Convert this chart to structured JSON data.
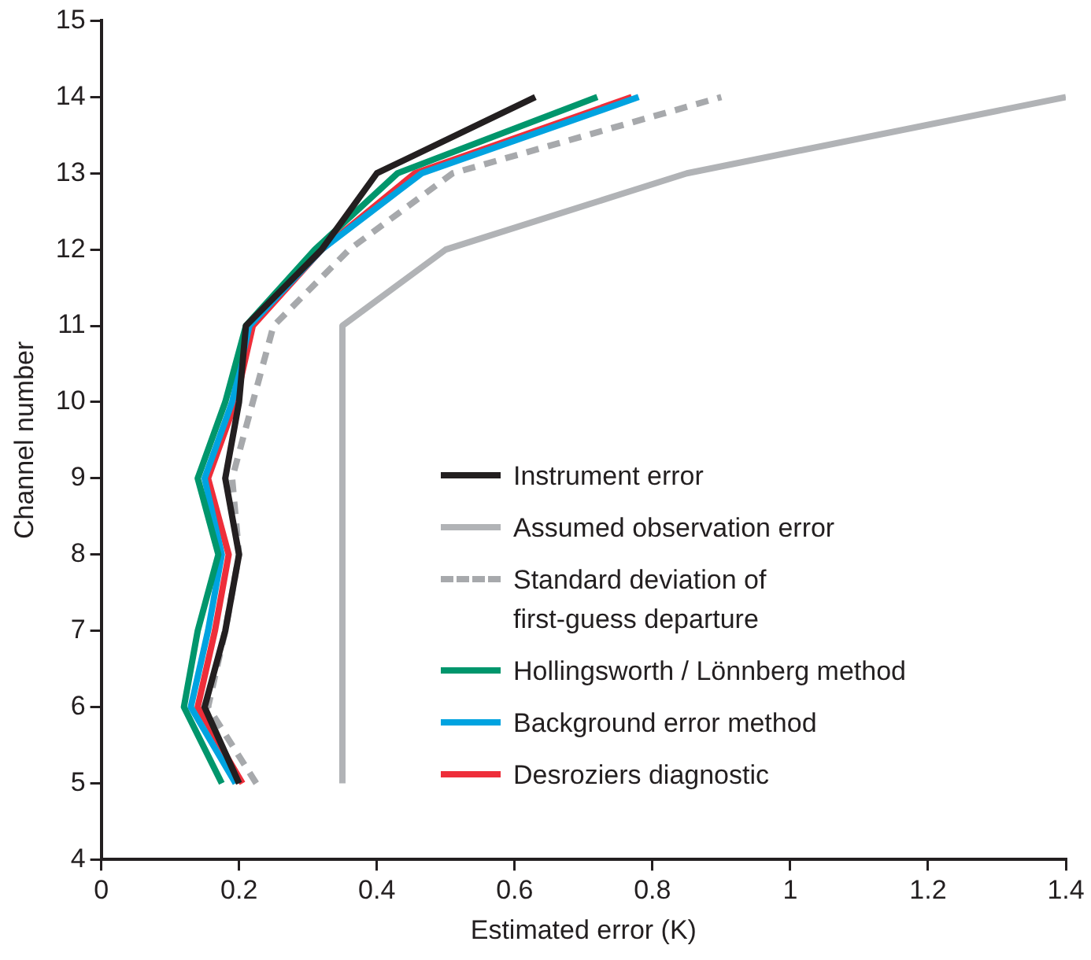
{
  "chart_data": {
    "type": "line",
    "xlabel": "Estimated error (K)",
    "ylabel": "Channel number",
    "xlim": [
      0,
      1.4
    ],
    "xticks": [
      0,
      0.2,
      0.4,
      0.6,
      0.8,
      1,
      1.2,
      1.4
    ],
    "ylim": [
      4,
      15
    ],
    "yticks": [
      4,
      5,
      6,
      7,
      8,
      9,
      10,
      11,
      12,
      13,
      14,
      15
    ],
    "grid": false,
    "legend": "center right",
    "marker": "none",
    "series": [
      {
        "name": "Instrument error",
        "color": "#231f20",
        "x": [
          0.2,
          0.15,
          0.18,
          0.2,
          0.18,
          0.2,
          0.21,
          0.32,
          0.4,
          0.63
        ],
        "values": [
          5,
          6,
          7,
          8,
          9,
          10,
          11,
          12,
          13,
          14
        ]
      },
      {
        "name": "Assumed observation error",
        "color": "#b1b3b6",
        "x": [
          0.35,
          0.35,
          0.35,
          0.35,
          0.35,
          0.35,
          0.35,
          0.5,
          0.85,
          1.4
        ],
        "values": [
          5,
          6,
          7,
          8,
          9,
          10,
          11,
          12,
          13,
          14
        ]
      },
      {
        "name": "Standard deviation of\nfirst-guess departure",
        "color": "#a7a9ac",
        "line_style": "dashed",
        "x": [
          0.225,
          0.155,
          0.18,
          0.2,
          0.19,
          0.22,
          0.25,
          0.36,
          0.51,
          0.9
        ],
        "values": [
          5,
          6,
          7,
          8,
          9,
          10,
          11,
          12,
          13,
          14
        ]
      },
      {
        "name": "Hollingsworth / Lönnberg method",
        "color": "#00966c",
        "x": [
          0.175,
          0.12,
          0.14,
          0.17,
          0.14,
          0.18,
          0.21,
          0.31,
          0.43,
          0.72
        ],
        "values": [
          5,
          6,
          7,
          8,
          9,
          10,
          11,
          12,
          13,
          14
        ]
      },
      {
        "name": "Background error method",
        "color": "#00a3e0",
        "x": [
          0.195,
          0.13,
          0.155,
          0.175,
          0.15,
          0.19,
          0.215,
          0.32,
          0.465,
          0.78
        ],
        "values": [
          5,
          6,
          7,
          8,
          9,
          10,
          11,
          12,
          13,
          14
        ]
      },
      {
        "name": "Desroziers diagnostic",
        "color": "#ee2e3a",
        "x": [
          0.205,
          0.14,
          0.165,
          0.185,
          0.155,
          0.195,
          0.22,
          0.32,
          0.455,
          0.77
        ],
        "values": [
          5,
          6,
          7,
          8,
          9,
          10,
          11,
          12,
          13,
          14
        ]
      }
    ]
  }
}
